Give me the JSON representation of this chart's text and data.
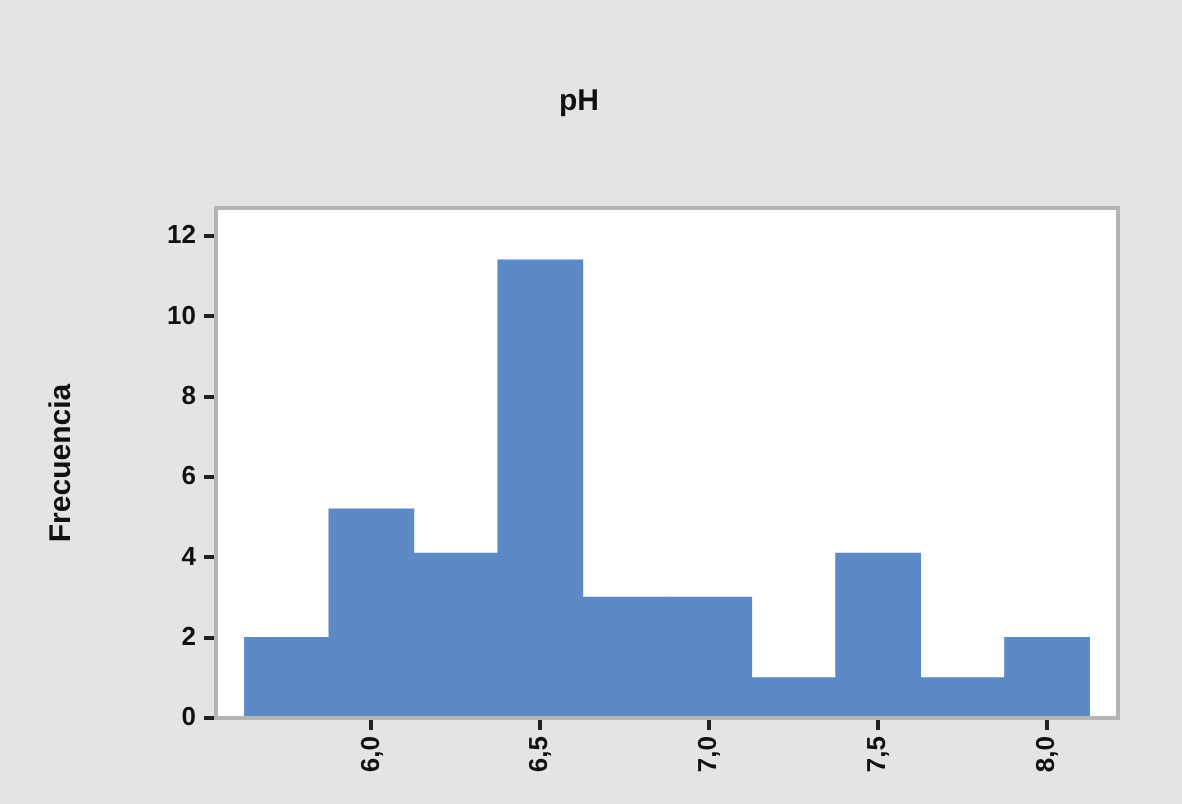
{
  "chart_data": {
    "type": "histogram",
    "title": "pH",
    "ylabel": "Frecuencia",
    "bins": [
      5.625,
      5.875,
      6.125,
      6.375,
      6.625,
      6.875,
      7.125,
      7.375,
      7.625,
      7.875,
      8.125
    ],
    "values": [
      2,
      5.2,
      4.1,
      11.4,
      3,
      3,
      1,
      4.1,
      1,
      2
    ],
    "color": "#5b8ac6",
    "xlim": [
      5.54,
      8.21
    ],
    "xticks": [
      {
        "value": 6,
        "label": "6,0"
      },
      {
        "value": 6.5,
        "label": "6,5"
      },
      {
        "value": 7,
        "label": "7,0"
      },
      {
        "value": 7.5,
        "label": "7,5"
      },
      {
        "value": 8,
        "label": "8,0"
      }
    ],
    "ylim": [
      0,
      12.7
    ],
    "yticks": [
      0,
      2,
      4,
      6,
      8,
      10,
      12
    ],
    "grid": false,
    "legend": false
  }
}
